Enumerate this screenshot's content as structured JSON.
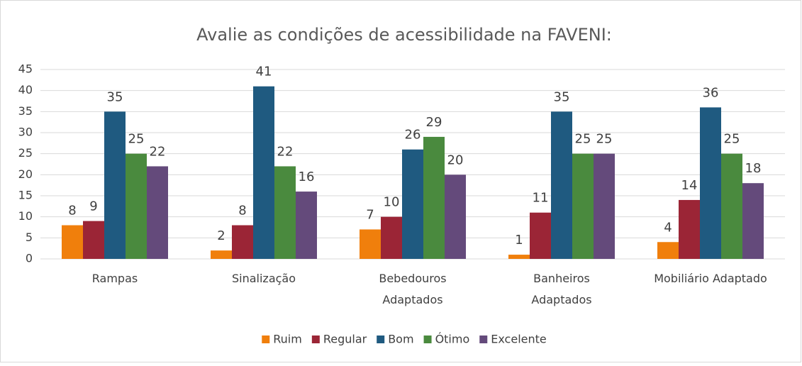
{
  "chart_data": {
    "type": "bar",
    "title": "Avalie as condições de acessibilidade na FAVENI:",
    "categories": [
      "Rampas",
      "Sinalização",
      "Bebedouros\nAdaptados",
      "Banheiros\nAdaptados",
      "Mobiliário Adaptado"
    ],
    "series": [
      {
        "name": "Ruim",
        "color": "#f07f0c",
        "values": [
          8,
          2,
          7,
          1,
          4
        ]
      },
      {
        "name": "Regular",
        "color": "#9b2536",
        "values": [
          9,
          8,
          10,
          11,
          14
        ]
      },
      {
        "name": "Bom",
        "color": "#1f5a80",
        "values": [
          35,
          41,
          26,
          35,
          36
        ]
      },
      {
        "name": "Ótimo",
        "color": "#4a8a3e",
        "values": [
          25,
          22,
          29,
          25,
          25
        ]
      },
      {
        "name": "Excelente",
        "color": "#644a7b",
        "values": [
          22,
          16,
          20,
          25,
          18
        ]
      }
    ],
    "ylim": [
      0,
      45
    ],
    "yticks": [
      0,
      5,
      10,
      15,
      20,
      25,
      30,
      35,
      40,
      45
    ],
    "grid": true,
    "legend": "bottom"
  }
}
